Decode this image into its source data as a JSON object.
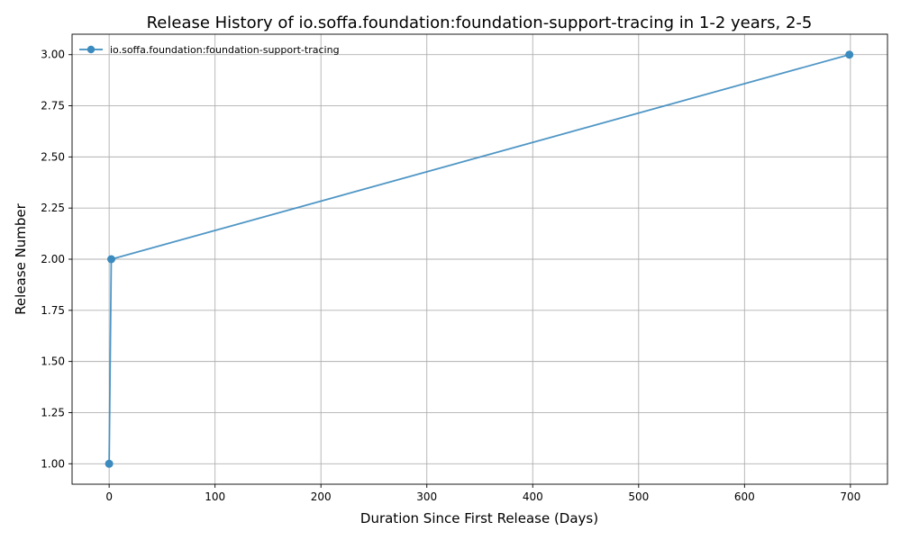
{
  "chart_data": {
    "type": "line",
    "title": "Release History of io.soffa.foundation:foundation-support-tracing in 1-2 years, 2-5",
    "xlabel": "Duration Since First Release (Days)",
    "ylabel": "Release Number",
    "xlim": [
      -35,
      735
    ],
    "ylim": [
      0.9,
      3.1
    ],
    "xticks": [
      0,
      100,
      200,
      300,
      400,
      500,
      600,
      700
    ],
    "yticks": [
      1.0,
      1.25,
      1.5,
      1.75,
      2.0,
      2.25,
      2.5,
      2.75,
      3.0
    ],
    "xtick_labels": [
      "0",
      "100",
      "200",
      "300",
      "400",
      "500",
      "600",
      "700"
    ],
    "ytick_labels": [
      "1.00",
      "1.25",
      "1.50",
      "1.75",
      "2.00",
      "2.25",
      "2.50",
      "2.75",
      "3.00"
    ],
    "grid": true,
    "legend_position": "top-left",
    "series": [
      {
        "name": "io.soffa.foundation:foundation-support-tracing",
        "color": "#3c8bbf",
        "marker": "circle",
        "x": [
          0,
          2,
          699
        ],
        "y": [
          1,
          2,
          3
        ]
      }
    ]
  }
}
